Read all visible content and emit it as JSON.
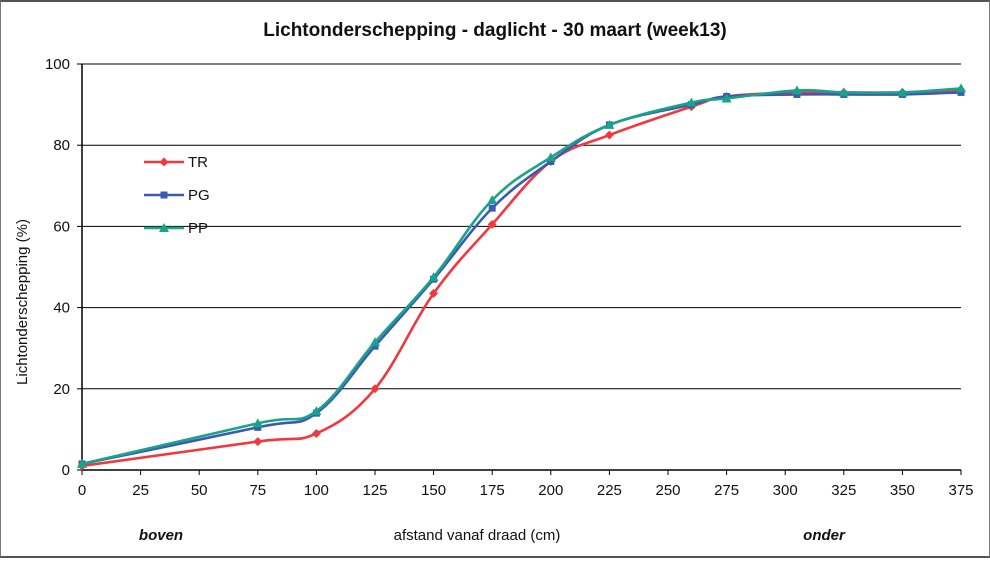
{
  "chart_data": {
    "type": "line",
    "title": "Lichtonderschepping - daglicht   - 30 maart (week13)",
    "xlabel": "afstand vanaf draad (cm)",
    "ylabel": "Lichtonderschepping (%)",
    "x_annotations": {
      "left": "boven",
      "right": "onder"
    },
    "xlim": [
      0,
      375
    ],
    "ylim": [
      0,
      100
    ],
    "xticks": [
      "0",
      "25",
      "50",
      "75",
      "100",
      "125",
      "150",
      "175",
      "200",
      "225",
      "250",
      "275",
      "300",
      "325",
      "350",
      "375"
    ],
    "yticks": [
      "0",
      "20",
      "40",
      "60",
      "80",
      "100"
    ],
    "grid": "horizontal",
    "legend_position": "left",
    "series": [
      {
        "name": "TR",
        "color": "#f0383f",
        "marker": "diamond",
        "x": [
          0,
          75,
          100,
          125,
          150,
          175,
          200,
          225,
          260,
          275,
          305,
          325,
          350,
          375
        ],
        "y": [
          1,
          7,
          9,
          20,
          43.5,
          60.5,
          76,
          82.5,
          89.5,
          92,
          93,
          93,
          93,
          93.5
        ]
      },
      {
        "name": "PG",
        "color": "#3a5bb0",
        "marker": "square",
        "x": [
          0,
          75,
          100,
          125,
          150,
          175,
          200,
          225,
          260,
          275,
          305,
          325,
          350,
          375
        ],
        "y": [
          1.5,
          10.5,
          14,
          30.5,
          47,
          64.5,
          76,
          85,
          90,
          92,
          92.5,
          92.5,
          92.5,
          93
        ]
      },
      {
        "name": "PP",
        "color": "#1aa38a",
        "marker": "triangle",
        "x": [
          0,
          75,
          100,
          125,
          150,
          175,
          200,
          225,
          260,
          275,
          305,
          325,
          350,
          375
        ],
        "y": [
          1.5,
          11.5,
          14.5,
          31.5,
          47.5,
          66.5,
          77,
          85,
          90.5,
          91.5,
          93.5,
          93,
          93,
          94
        ]
      }
    ]
  }
}
